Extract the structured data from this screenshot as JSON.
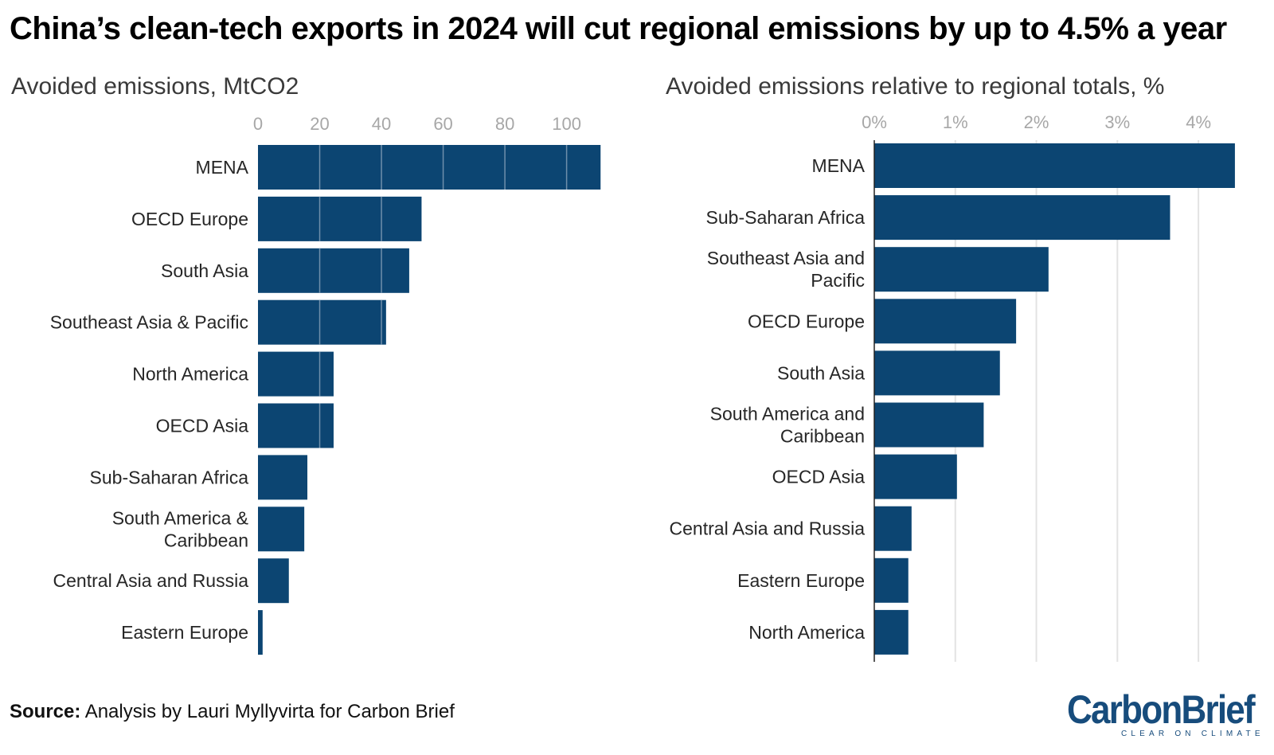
{
  "title": "China’s clean-tech exports in 2024 will cut regional emissions by up to 4.5% a year",
  "source_label": "Source:",
  "source_text": " Analysis by Lauri Myllyvirta for Carbon Brief",
  "logo": {
    "name": "CarbonBrief",
    "tagline": "CLEAR ON CLIMATE"
  },
  "colors": {
    "bar": "#0c4572",
    "grid_on_bar": "#6f8fab",
    "grid": "#e3e3e3",
    "ticks": "#a7a7a7",
    "logo": "#174c7c"
  },
  "chart_data": [
    {
      "type": "bar",
      "orientation": "horizontal",
      "title": "Avoided emissions, MtCO2",
      "categories": [
        "MENA",
        "OECD Europe",
        "South Asia",
        "Southeast Asia & Pacific",
        "North America",
        "OECD Asia",
        "Sub-Saharan Africa",
        "South America & Caribbean",
        "Central Asia and Russia",
        "Eastern Europe"
      ],
      "values": [
        111,
        53,
        49,
        41.5,
        24.5,
        24.5,
        16,
        15,
        10,
        1.5
      ],
      "xlim": [
        0,
        113
      ],
      "xticks": [
        0,
        20,
        40,
        60,
        80,
        100
      ],
      "tick_labels": [
        "0",
        "20",
        "40",
        "60",
        "80",
        "100"
      ],
      "grid": true,
      "grid_over_bars": true
    },
    {
      "type": "bar",
      "orientation": "horizontal",
      "title": "Avoided emissions relative to regional totals, %",
      "categories": [
        "MENA",
        "Sub-Saharan Africa",
        "Southeast Asia and Pacific",
        "OECD Europe",
        "South Asia",
        "South America and Caribbean",
        "OECD Asia",
        "Central Asia and Russia",
        "Eastern Europe",
        "North America"
      ],
      "values": [
        4.45,
        3.65,
        2.15,
        1.75,
        1.55,
        1.35,
        1.02,
        0.46,
        0.42,
        0.42
      ],
      "xlim": [
        0,
        4.5
      ],
      "xticks": [
        0,
        1,
        2,
        3,
        4
      ],
      "tick_labels": [
        "0%",
        "1%",
        "2%",
        "3%",
        "4%"
      ],
      "grid": true,
      "grid_over_bars": false
    }
  ]
}
